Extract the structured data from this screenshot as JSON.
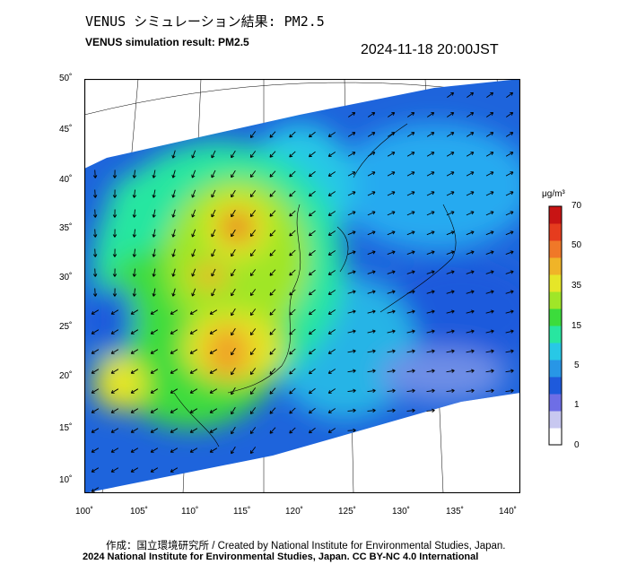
{
  "title_jp": "VENUS シミュレーション結果: PM2.5",
  "title_en": "VENUS simulation result: PM2.5",
  "timestamp": "2024-11-18 20:00JST",
  "lat_labels": [
    "50˚",
    "45˚",
    "40˚",
    "35˚",
    "30˚",
    "25˚",
    "20˚",
    "15˚",
    "10˚"
  ],
  "lon_labels": [
    "100˚",
    "105˚",
    "110˚",
    "115˚",
    "120˚",
    "125˚",
    "130˚",
    "135˚",
    "140˚"
  ],
  "colorbar": {
    "unit": "μg/m³",
    "ticks": [
      "70",
      "50",
      "35",
      "15",
      "5",
      "1",
      "0"
    ],
    "colors": [
      "#ffffff",
      "#c8c8f0",
      "#6e6ee6",
      "#1e5adc",
      "#2896e6",
      "#28c8e6",
      "#28e6a0",
      "#3cdc3c",
      "#a0e628",
      "#e6e628",
      "#f0b428",
      "#f07828",
      "#e63c1e",
      "#c81414"
    ]
  },
  "credit_line_1": "作成：国立環境研究所 / Created by National Institute for Environmental Studies, Japan.",
  "credit_line_2": "2024 National Institute for Environmental Studies, Japan. CC BY-NC 4.0 International"
}
